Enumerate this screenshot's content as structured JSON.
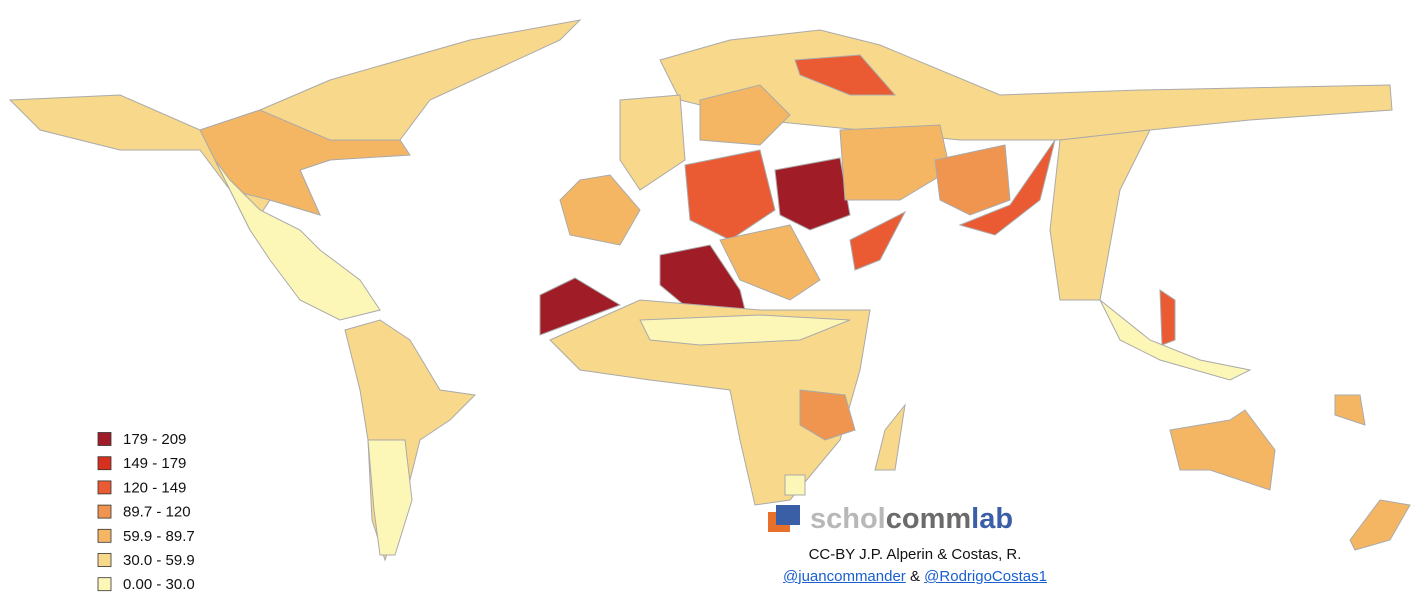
{
  "legend": {
    "items": [
      {
        "label": "179 - 209",
        "color": "#a01c27"
      },
      {
        "label": "149 - 179",
        "color": "#d7301f"
      },
      {
        "label": "120 - 149",
        "color": "#ea5a33"
      },
      {
        "label": "89.7 - 120",
        "color": "#ef9550"
      },
      {
        "label": "59.9 - 89.7",
        "color": "#f5b663"
      },
      {
        "label": "30.0 - 59.9",
        "color": "#f8d88a"
      },
      {
        "label": "0.00 - 30.0",
        "color": "#fdf7b7"
      }
    ]
  },
  "logo": {
    "part1": "schol",
    "part2": "comm",
    "part3": "lab"
  },
  "credit": "CC-BY J.P. Alperin & Costas, R.",
  "links": {
    "first": "@juancommander",
    "joiner": "&",
    "second": "@RodrigoCostas1"
  }
}
